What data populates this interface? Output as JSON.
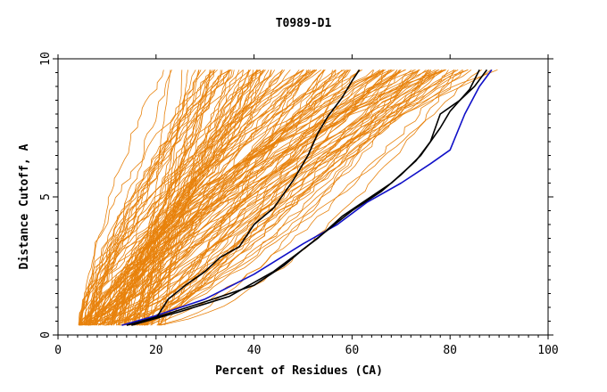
{
  "chart_data": {
    "type": "line",
    "title": "T0989-D1",
    "xlabel": "Percent of Residues (CA)",
    "ylabel": "Distance Cutoff, A",
    "xlim": [
      0,
      100
    ],
    "ylim": [
      0,
      10
    ],
    "xticks": [
      0,
      20,
      40,
      60,
      80,
      100
    ],
    "yticks": [
      0,
      5,
      10
    ],
    "y_range_of_curves": [
      0.35,
      9.6
    ],
    "grid": false,
    "colors": {
      "background_models": "#E8820C",
      "reference": "#1010C8",
      "highlight": "#000000",
      "axis": "#000000"
    },
    "background_band": {
      "count": 150,
      "start_x_range": [
        4,
        22
      ],
      "end_x_range": [
        20,
        92
      ]
    },
    "series": [
      {
        "style": "blue",
        "points": [
          [
            13,
            0.35
          ],
          [
            20,
            0.7
          ],
          [
            30,
            1.3
          ],
          [
            40,
            2.2
          ],
          [
            50,
            3.3
          ],
          [
            57,
            4.0
          ],
          [
            63,
            4.8
          ],
          [
            70,
            5.5
          ],
          [
            76,
            6.2
          ],
          [
            80,
            6.7
          ],
          [
            83,
            8.0
          ],
          [
            86,
            9.0
          ],
          [
            88.5,
            9.6
          ]
        ]
      },
      {
        "style": "black",
        "points": [
          [
            14,
            0.35
          ],
          [
            22,
            0.75
          ],
          [
            30,
            1.2
          ],
          [
            40,
            1.8
          ],
          [
            46,
            2.5
          ],
          [
            50,
            3.1
          ],
          [
            53,
            3.5
          ],
          [
            58,
            4.3
          ],
          [
            63,
            4.9
          ],
          [
            68,
            5.5
          ],
          [
            73,
            6.3
          ],
          [
            76,
            7.0
          ],
          [
            78,
            8.0
          ],
          [
            82,
            8.5
          ],
          [
            85,
            9.0
          ],
          [
            87.5,
            9.6
          ]
        ]
      },
      {
        "style": "black",
        "points": [
          [
            15,
            0.35
          ],
          [
            25,
            0.85
          ],
          [
            35,
            1.4
          ],
          [
            44,
            2.3
          ],
          [
            50,
            3.1
          ],
          [
            55,
            3.8
          ],
          [
            60,
            4.5
          ],
          [
            66,
            5.2
          ],
          [
            70,
            5.8
          ],
          [
            74,
            6.5
          ],
          [
            78,
            7.5
          ],
          [
            80,
            8.1
          ],
          [
            84,
            8.9
          ],
          [
            86,
            9.6
          ]
        ]
      },
      {
        "style": "black",
        "points": [
          [
            20,
            0.6
          ],
          [
            22.5,
            1.3
          ],
          [
            26,
            1.8
          ],
          [
            30,
            2.3
          ],
          [
            33,
            2.8
          ],
          [
            37,
            3.2
          ],
          [
            40,
            4.0
          ],
          [
            44,
            4.6
          ],
          [
            48,
            5.6
          ],
          [
            51,
            6.5
          ],
          [
            53,
            7.3
          ],
          [
            55,
            7.9
          ],
          [
            58,
            8.6
          ],
          [
            60,
            9.2
          ],
          [
            61.5,
            9.6
          ]
        ]
      }
    ]
  }
}
